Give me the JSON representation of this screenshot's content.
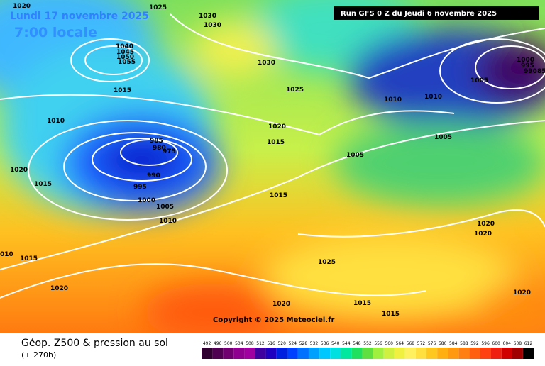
{
  "header": {
    "date": "Lundi 17 novembre 2025",
    "time": "7:00 locale",
    "run": "Run GFS 0 Z du Jeudi 6 novembre 2025"
  },
  "copyright": "Copyright © 2025 Meteociel.fr",
  "footer": {
    "title": "Géop. Z500 & pression au sol",
    "lead": "(+ 270h)"
  },
  "legend": {
    "values": [
      492,
      496,
      500,
      504,
      508,
      512,
      516,
      520,
      524,
      528,
      532,
      536,
      540,
      544,
      548,
      552,
      556,
      560,
      564,
      568,
      572,
      576,
      580,
      584,
      588,
      592,
      596,
      600,
      604,
      608,
      612
    ]
  },
  "isobar_labels": [
    "1020",
    "1025",
    "1030",
    "1030",
    "1040",
    "1045",
    "1050",
    "1055",
    "1030",
    "1015",
    "1025",
    "1010",
    "1010",
    "1005",
    "1000",
    "995",
    "990",
    "85",
    "1010",
    "1020",
    "1015",
    "1005",
    "1005",
    "985",
    "980",
    "975",
    "990",
    "995",
    "1000",
    "1005",
    "1010",
    "1020",
    "1015",
    "1015",
    "1020",
    "1020",
    "010",
    "1015",
    "1025",
    "1020",
    "1020",
    "1015",
    "1015",
    "1020"
  ]
}
